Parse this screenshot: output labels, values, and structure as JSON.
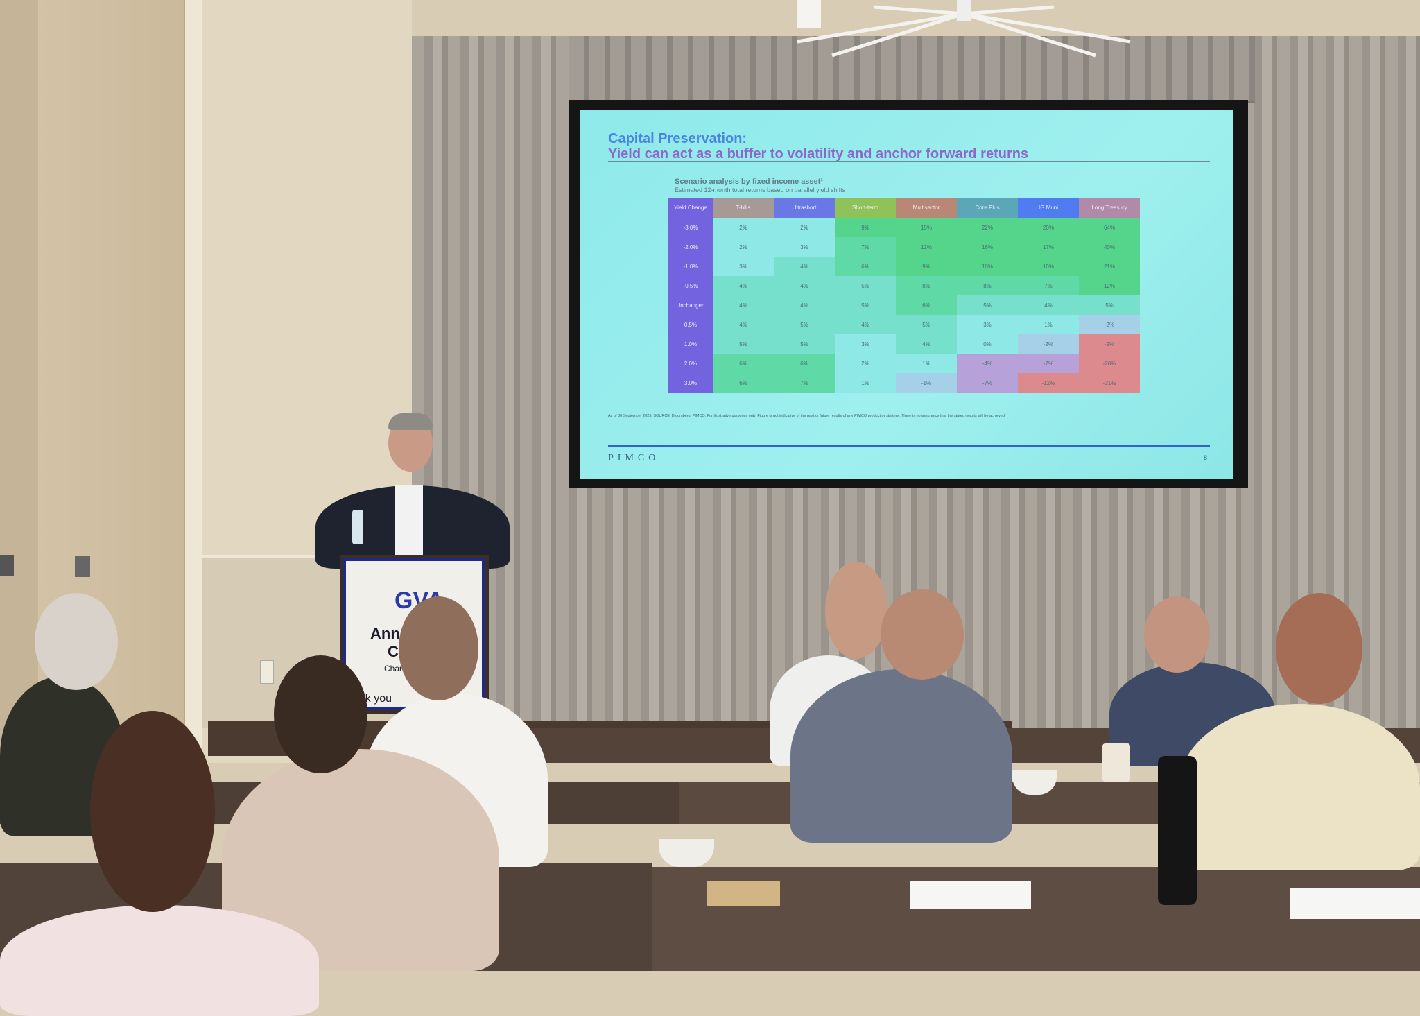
{
  "slide": {
    "title": "Capital Preservation:",
    "subtitle": "Yield can act as a buffer to volatility and anchor forward returns",
    "table_title": "Scenario analysis by fixed income asset¹",
    "table_subtitle": "Estimated 12-month total returns based on parallel yield shifts",
    "columns": [
      {
        "label": "Yield Change",
        "color": "#7463df"
      },
      {
        "label": "T-bills",
        "color": "#a79a96"
      },
      {
        "label": "Ultrashort",
        "color": "#6a78e6"
      },
      {
        "label": "Short-term",
        "color": "#8fc35a"
      },
      {
        "label": "Multisector",
        "color": "#b98775"
      },
      {
        "label": "Core Plus",
        "color": "#5ba7b8"
      },
      {
        "label": "IG Muni",
        "color": "#4f7cf0"
      },
      {
        "label": "Long Treasury",
        "color": "#b08aa8"
      }
    ],
    "rows": [
      {
        "label": "-3.0%",
        "values": [
          "2%",
          "2%",
          "9%",
          "15%",
          "22%",
          "20%",
          "64%"
        ]
      },
      {
        "label": "-2.0%",
        "values": [
          "2%",
          "3%",
          "7%",
          "12%",
          "16%",
          "17%",
          "40%"
        ]
      },
      {
        "label": "-1.0%",
        "values": [
          "3%",
          "4%",
          "6%",
          "9%",
          "10%",
          "10%",
          "21%"
        ]
      },
      {
        "label": "-0.5%",
        "values": [
          "4%",
          "4%",
          "5%",
          "8%",
          "8%",
          "7%",
          "12%"
        ]
      },
      {
        "label": "Unchanged",
        "values": [
          "4%",
          "4%",
          "5%",
          "6%",
          "5%",
          "4%",
          "5%"
        ]
      },
      {
        "label": "0.5%",
        "values": [
          "4%",
          "5%",
          "4%",
          "5%",
          "3%",
          "1%",
          "-2%"
        ]
      },
      {
        "label": "1.0%",
        "values": [
          "5%",
          "5%",
          "3%",
          "4%",
          "0%",
          "-2%",
          "-9%"
        ]
      },
      {
        "label": "2.0%",
        "values": [
          "6%",
          "6%",
          "2%",
          "1%",
          "-4%",
          "-7%",
          "-20%"
        ]
      },
      {
        "label": "3.0%",
        "values": [
          "6%",
          "7%",
          "1%",
          "-1%",
          "-7%",
          "-12%",
          "-31%"
        ]
      }
    ],
    "footnote": "As of 30 September 2025. SOURCE: Bloomberg, PIMCO. For illustrative purposes only. Figure is not indicative of the past or future results of any PIMCO product or strategy. There is no assurance that the stated results will be achieved.",
    "logo": "PIMCO",
    "page_number": "8"
  },
  "podium_sign": {
    "logo": "GVA",
    "line1": "Annu",
    "line2": "Co",
    "line3": "Char",
    "line4": "ank you"
  }
}
